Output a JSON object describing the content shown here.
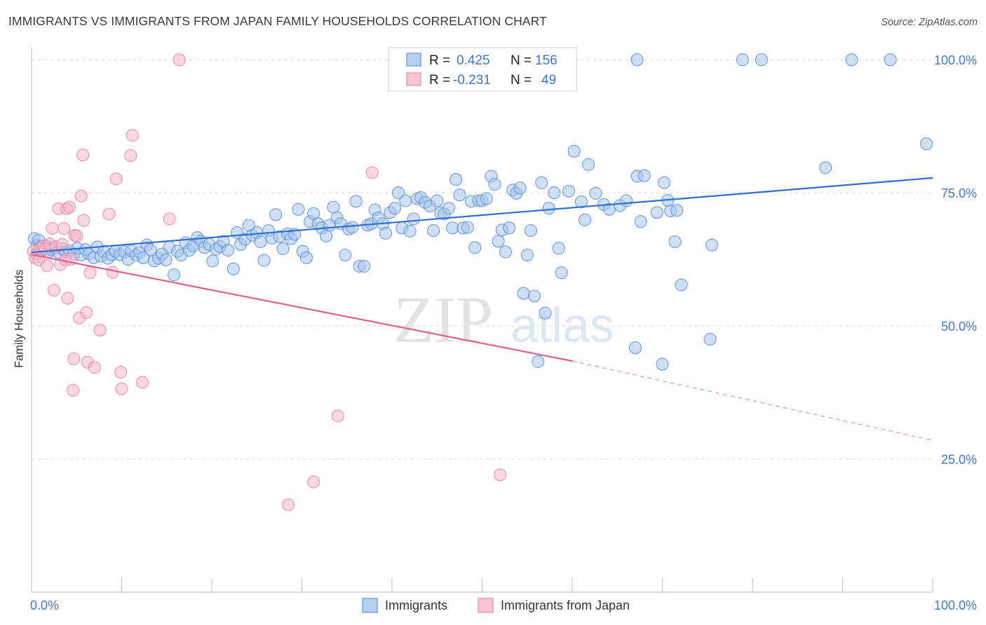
{
  "title": "IMMIGRANTS VS IMMIGRANTS FROM JAPAN FAMILY HOUSEHOLDS CORRELATION CHART",
  "source": "Source: ZipAtlas.com",
  "watermark": {
    "zip": "ZIP",
    "atlas": "atlas"
  },
  "colors": {
    "blue_fill": "#a8c4ec",
    "blue_stroke": "#5f92dc",
    "blue_line": "#2f6fd0",
    "pink_fill": "#f6b7c9",
    "pink_stroke": "#e88aa6",
    "pink_line": "#e0608a",
    "tick_label": "#4477cc",
    "grid": "#d9d9d9"
  },
  "legend": {
    "rows": [
      {
        "r_label": "R =",
        "r_value": "0.425",
        "n_label": "N =",
        "n_value": "156"
      },
      {
        "r_label": "R =",
        "r_value": "-0.231",
        "n_label": "N =",
        "n_value": "49"
      }
    ]
  },
  "bottom_legend": {
    "items": [
      "Immigrants",
      "Immigrants from Japan"
    ]
  },
  "chart_data": {
    "type": "scatter",
    "title": "IMMIGRANTS VS IMMIGRANTS FROM JAPAN FAMILY HOUSEHOLDS CORRELATION CHART",
    "xlabel": "",
    "ylabel": "Family Households",
    "xlim": [
      0,
      100
    ],
    "ylim": [
      0,
      102
    ],
    "x_tick_labels": [
      "0.0%",
      "100.0%"
    ],
    "y_ticks": [
      25,
      50,
      75,
      100
    ],
    "y_tick_labels": [
      "25.0%",
      "50.0%",
      "75.0%",
      "100.0%"
    ],
    "grid": true,
    "legend_position": "top-center",
    "series": [
      {
        "name": "Immigrants",
        "r": 0.425,
        "n": 156,
        "trend": {
          "x": [
            0,
            100
          ],
          "y": [
            63.8,
            77.8
          ]
        },
        "points": [
          [
            0.3,
            66.4
          ],
          [
            0.6,
            65.1
          ],
          [
            0.8,
            66.1
          ],
          [
            1.0,
            64.8
          ],
          [
            1.2,
            64.2
          ],
          [
            1.6,
            65.0
          ],
          [
            1.9,
            63.9
          ],
          [
            2.2,
            64.3
          ],
          [
            2.5,
            64.7
          ],
          [
            3.0,
            63.8
          ],
          [
            3.4,
            64.5
          ],
          [
            3.8,
            63.9
          ],
          [
            4.2,
            64.1
          ],
          [
            4.7,
            63.5
          ],
          [
            5.1,
            64.6
          ],
          [
            5.5,
            63.3
          ],
          [
            6.0,
            64.3
          ],
          [
            6.4,
            63.5
          ],
          [
            6.9,
            62.8
          ],
          [
            7.3,
            64.8
          ],
          [
            7.7,
            63.1
          ],
          [
            8.0,
            64.0
          ],
          [
            8.5,
            62.7
          ],
          [
            8.9,
            63.4
          ],
          [
            9.3,
            64.0
          ],
          [
            9.8,
            63.4
          ],
          [
            10.3,
            63.9
          ],
          [
            10.7,
            62.5
          ],
          [
            11.1,
            64.1
          ],
          [
            11.6,
            63.3
          ],
          [
            12.0,
            63.8
          ],
          [
            12.4,
            62.8
          ],
          [
            12.8,
            65.2
          ],
          [
            13.2,
            64.3
          ],
          [
            13.6,
            62.2
          ],
          [
            14.1,
            62.7
          ],
          [
            14.5,
            63.5
          ],
          [
            14.9,
            62.4
          ],
          [
            15.3,
            64.8
          ],
          [
            15.8,
            59.6
          ],
          [
            16.2,
            64.0
          ],
          [
            16.6,
            63.3
          ],
          [
            17.1,
            65.6
          ],
          [
            17.5,
            64.2
          ],
          [
            17.9,
            65.0
          ],
          [
            18.4,
            66.6
          ],
          [
            18.8,
            65.9
          ],
          [
            19.2,
            64.7
          ],
          [
            19.7,
            65.3
          ],
          [
            20.1,
            62.2
          ],
          [
            20.5,
            64.4
          ],
          [
            20.9,
            64.9
          ],
          [
            21.3,
            65.9
          ],
          [
            21.8,
            64.2
          ],
          [
            22.4,
            60.7
          ],
          [
            22.8,
            67.5
          ],
          [
            23.2,
            65.3
          ],
          [
            23.7,
            66.3
          ],
          [
            24.1,
            68.9
          ],
          [
            24.5,
            67.0
          ],
          [
            25.0,
            67.5
          ],
          [
            25.4,
            65.8
          ],
          [
            25.8,
            62.3
          ],
          [
            26.3,
            67.9
          ],
          [
            26.7,
            66.5
          ],
          [
            27.1,
            70.9
          ],
          [
            27.5,
            66.8
          ],
          [
            27.9,
            64.5
          ],
          [
            28.4,
            67.3
          ],
          [
            28.8,
            66.4
          ],
          [
            29.2,
            67.2
          ],
          [
            29.6,
            71.9
          ],
          [
            30.1,
            64.0
          ],
          [
            30.5,
            62.8
          ],
          [
            30.9,
            69.6
          ],
          [
            31.3,
            71.1
          ],
          [
            31.8,
            69.2
          ],
          [
            32.2,
            68.4
          ],
          [
            32.7,
            66.9
          ],
          [
            33.1,
            68.9
          ],
          [
            33.5,
            72.3
          ],
          [
            33.9,
            70.3
          ],
          [
            34.3,
            69.2
          ],
          [
            34.8,
            63.3
          ],
          [
            35.2,
            68.2
          ],
          [
            35.6,
            68.5
          ],
          [
            36.0,
            73.4
          ],
          [
            36.4,
            61.2
          ],
          [
            36.9,
            61.2
          ],
          [
            37.3,
            68.9
          ],
          [
            37.7,
            69.2
          ],
          [
            38.1,
            71.8
          ],
          [
            38.5,
            70.3
          ],
          [
            39.0,
            69.2
          ],
          [
            39.3,
            67.4
          ],
          [
            39.8,
            71.3
          ],
          [
            40.3,
            72.1
          ],
          [
            40.7,
            75.0
          ],
          [
            41.1,
            68.4
          ],
          [
            41.5,
            73.5
          ],
          [
            42.0,
            67.8
          ],
          [
            42.4,
            70.1
          ],
          [
            42.8,
            73.9
          ],
          [
            43.2,
            74.1
          ],
          [
            43.7,
            73.2
          ],
          [
            44.2,
            72.5
          ],
          [
            44.6,
            67.9
          ],
          [
            45.0,
            73.5
          ],
          [
            45.4,
            71.2
          ],
          [
            45.8,
            71.0
          ],
          [
            46.3,
            72.1
          ],
          [
            46.7,
            68.4
          ],
          [
            47.1,
            77.5
          ],
          [
            47.5,
            74.6
          ],
          [
            47.9,
            68.4
          ],
          [
            48.4,
            68.5
          ],
          [
            48.8,
            73.4
          ],
          [
            49.2,
            64.7
          ],
          [
            49.6,
            73.5
          ],
          [
            50.0,
            73.5
          ],
          [
            50.5,
            73.9
          ],
          [
            51.0,
            78.1
          ],
          [
            51.4,
            76.6
          ],
          [
            51.8,
            65.9
          ],
          [
            52.2,
            68.0
          ],
          [
            52.6,
            63.9
          ],
          [
            53.0,
            68.4
          ],
          [
            53.4,
            75.5
          ],
          [
            53.8,
            74.9
          ],
          [
            54.2,
            75.9
          ],
          [
            54.6,
            56.1
          ],
          [
            55.0,
            63.3
          ],
          [
            55.4,
            67.9
          ],
          [
            55.8,
            55.6
          ],
          [
            56.2,
            43.3
          ],
          [
            56.6,
            76.9
          ],
          [
            57.0,
            52.4
          ],
          [
            57.4,
            72.1
          ],
          [
            58.0,
            75.0
          ],
          [
            58.5,
            64.6
          ],
          [
            58.8,
            60.0
          ],
          [
            59.6,
            75.3
          ],
          [
            60.2,
            82.8
          ],
          [
            61.0,
            73.3
          ],
          [
            61.4,
            69.9
          ],
          [
            61.8,
            80.3
          ],
          [
            62.6,
            74.9
          ],
          [
            63.5,
            72.8
          ],
          [
            64.1,
            71.9
          ],
          [
            65.3,
            72.6
          ],
          [
            66.0,
            73.5
          ],
          [
            67.2,
            78.1
          ],
          [
            67.6,
            69.6
          ],
          [
            68.0,
            78.2
          ],
          [
            69.4,
            71.3
          ],
          [
            70.2,
            76.9
          ],
          [
            70.6,
            73.6
          ],
          [
            70.9,
            71.6
          ],
          [
            71.4,
            65.8
          ],
          [
            71.6,
            71.7
          ],
          [
            72.1,
            57.7
          ],
          [
            67.0,
            45.9
          ],
          [
            70.0,
            42.8
          ],
          [
            75.5,
            65.2
          ],
          [
            75.3,
            47.5
          ],
          [
            67.2,
            100
          ],
          [
            78.9,
            100
          ],
          [
            81.0,
            100
          ],
          [
            91.0,
            100
          ],
          [
            95.3,
            100
          ],
          [
            88.1,
            79.7
          ],
          [
            99.3,
            84.2
          ]
        ]
      },
      {
        "name": "Immigrants from Japan",
        "r": -0.231,
        "n": 49,
        "trend": {
          "x": [
            0,
            60
          ],
          "y": [
            63.4,
            43.4
          ]
        },
        "trend_dashed": {
          "x": [
            60,
            100
          ],
          "y": [
            43.4,
            28.5
          ]
        },
        "points": [
          [
            0.2,
            64.0
          ],
          [
            0.4,
            62.8
          ],
          [
            0.6,
            63.5
          ],
          [
            0.8,
            62.4
          ],
          [
            1.0,
            64.6
          ],
          [
            1.3,
            65.0
          ],
          [
            1.5,
            64.5
          ],
          [
            1.7,
            61.3
          ],
          [
            2.0,
            65.4
          ],
          [
            2.3,
            68.3
          ],
          [
            2.5,
            56.7
          ],
          [
            2.7,
            64.9
          ],
          [
            3.0,
            72.0
          ],
          [
            3.2,
            61.5
          ],
          [
            3.4,
            65.3
          ],
          [
            3.6,
            68.3
          ],
          [
            3.8,
            62.4
          ],
          [
            3.9,
            72.0
          ],
          [
            4.0,
            55.2
          ],
          [
            4.2,
            72.3
          ],
          [
            4.4,
            62.5
          ],
          [
            4.8,
            67.0
          ],
          [
            4.6,
            37.9
          ],
          [
            4.7,
            43.8
          ],
          [
            5.0,
            66.9
          ],
          [
            5.3,
            51.5
          ],
          [
            5.5,
            74.4
          ],
          [
            5.7,
            82.1
          ],
          [
            5.8,
            69.8
          ],
          [
            6.1,
            52.5
          ],
          [
            6.2,
            43.2
          ],
          [
            6.5,
            60.0
          ],
          [
            7.0,
            42.2
          ],
          [
            7.6,
            49.2
          ],
          [
            8.6,
            71.0
          ],
          [
            9.0,
            60.1
          ],
          [
            9.4,
            77.6
          ],
          [
            9.9,
            41.3
          ],
          [
            10.0,
            38.2
          ],
          [
            11.0,
            82.0
          ],
          [
            11.2,
            85.8
          ],
          [
            12.3,
            39.4
          ],
          [
            15.3,
            70.1
          ],
          [
            16.4,
            100
          ],
          [
            28.5,
            16.4
          ],
          [
            31.3,
            20.7
          ],
          [
            34.0,
            33.1
          ],
          [
            37.8,
            78.8
          ],
          [
            52.0,
            22.0
          ]
        ]
      }
    ]
  }
}
